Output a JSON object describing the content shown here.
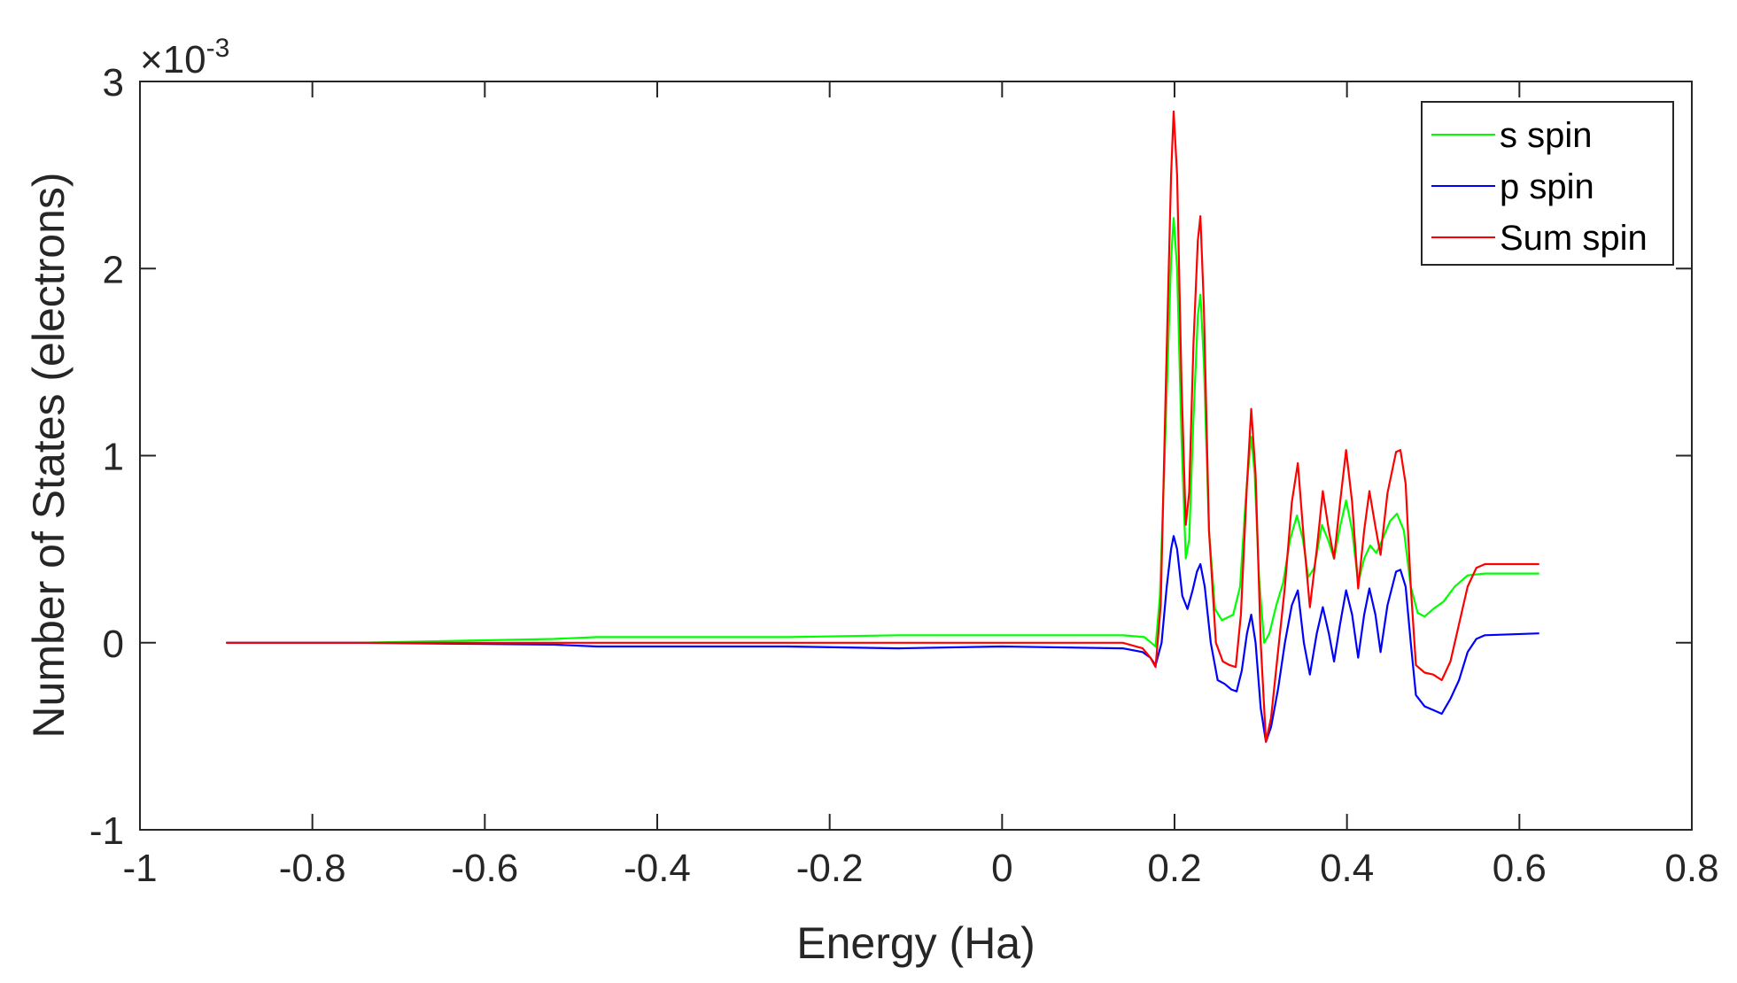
{
  "chart_data": {
    "type": "line",
    "title": "",
    "xlabel": "Energy (Ha)",
    "ylabel": "Number of States (electrons)",
    "y_multiplier": {
      "base": "×10",
      "exponent": "-3"
    },
    "xlim": [
      -1,
      0.8
    ],
    "ylim": [
      -1,
      3
    ],
    "x_ticks": [
      -1,
      -0.8,
      -0.6,
      -0.4,
      -0.2,
      0,
      0.2,
      0.4,
      0.6,
      0.8
    ],
    "x_tick_labels": [
      "-1",
      "-0.8",
      "-0.6",
      "-0.4",
      "-0.2",
      "0",
      "0.2",
      "0.4",
      "0.6",
      "0.8"
    ],
    "y_ticks": [
      -1,
      0,
      1,
      2,
      3
    ],
    "y_tick_labels": [
      "-1",
      "0",
      "1",
      "2",
      "3"
    ],
    "grid": false,
    "legend_position": "top-right",
    "series": [
      {
        "name": "s spin",
        "color": "#00ff00",
        "points": [
          [
            -0.9,
            0.0
          ],
          [
            -0.75,
            0.0
          ],
          [
            -0.52,
            0.02
          ],
          [
            -0.47,
            0.03
          ],
          [
            -0.3,
            0.03
          ],
          [
            -0.25,
            0.03
          ],
          [
            -0.12,
            0.04
          ],
          [
            0.0,
            0.04
          ],
          [
            0.14,
            0.04
          ],
          [
            0.165,
            0.03
          ],
          [
            0.173,
            0.0
          ],
          [
            0.178,
            -0.02
          ],
          [
            0.183,
            0.25
          ],
          [
            0.19,
            1.2
          ],
          [
            0.196,
            2.05
          ],
          [
            0.199,
            2.27
          ],
          [
            0.203,
            2.0
          ],
          [
            0.208,
            1.1
          ],
          [
            0.213,
            0.45
          ],
          [
            0.217,
            0.55
          ],
          [
            0.222,
            1.2
          ],
          [
            0.227,
            1.75
          ],
          [
            0.23,
            1.86
          ],
          [
            0.234,
            1.5
          ],
          [
            0.24,
            0.6
          ],
          [
            0.247,
            0.18
          ],
          [
            0.255,
            0.12
          ],
          [
            0.268,
            0.15
          ],
          [
            0.276,
            0.3
          ],
          [
            0.283,
            0.8
          ],
          [
            0.289,
            1.1
          ],
          [
            0.293,
            0.9
          ],
          [
            0.298,
            0.35
          ],
          [
            0.304,
            0.0
          ],
          [
            0.31,
            0.05
          ],
          [
            0.318,
            0.2
          ],
          [
            0.326,
            0.32
          ],
          [
            0.334,
            0.55
          ],
          [
            0.342,
            0.68
          ],
          [
            0.349,
            0.55
          ],
          [
            0.355,
            0.35
          ],
          [
            0.362,
            0.4
          ],
          [
            0.371,
            0.63
          ],
          [
            0.378,
            0.55
          ],
          [
            0.385,
            0.45
          ],
          [
            0.392,
            0.62
          ],
          [
            0.399,
            0.76
          ],
          [
            0.406,
            0.6
          ],
          [
            0.413,
            0.32
          ],
          [
            0.42,
            0.45
          ],
          [
            0.427,
            0.52
          ],
          [
            0.434,
            0.48
          ],
          [
            0.441,
            0.55
          ],
          [
            0.45,
            0.65
          ],
          [
            0.458,
            0.69
          ],
          [
            0.466,
            0.6
          ],
          [
            0.474,
            0.3
          ],
          [
            0.482,
            0.16
          ],
          [
            0.49,
            0.14
          ],
          [
            0.5,
            0.18
          ],
          [
            0.512,
            0.22
          ],
          [
            0.525,
            0.3
          ],
          [
            0.54,
            0.36
          ],
          [
            0.56,
            0.37
          ],
          [
            0.623,
            0.37
          ]
        ]
      },
      {
        "name": "p spin",
        "color": "#0000ff",
        "points": [
          [
            -0.9,
            0.0
          ],
          [
            -0.75,
            0.0
          ],
          [
            -0.52,
            -0.01
          ],
          [
            -0.47,
            -0.02
          ],
          [
            -0.3,
            -0.02
          ],
          [
            -0.25,
            -0.02
          ],
          [
            -0.12,
            -0.03
          ],
          [
            0.0,
            -0.02
          ],
          [
            0.14,
            -0.03
          ],
          [
            0.163,
            -0.05
          ],
          [
            0.172,
            -0.08
          ],
          [
            0.178,
            -0.12
          ],
          [
            0.185,
            0.0
          ],
          [
            0.191,
            0.3
          ],
          [
            0.196,
            0.5
          ],
          [
            0.199,
            0.57
          ],
          [
            0.203,
            0.5
          ],
          [
            0.209,
            0.25
          ],
          [
            0.215,
            0.18
          ],
          [
            0.221,
            0.28
          ],
          [
            0.226,
            0.38
          ],
          [
            0.23,
            0.42
          ],
          [
            0.235,
            0.3
          ],
          [
            0.242,
            0.0
          ],
          [
            0.25,
            -0.2
          ],
          [
            0.258,
            -0.22
          ],
          [
            0.266,
            -0.25
          ],
          [
            0.272,
            -0.26
          ],
          [
            0.278,
            -0.15
          ],
          [
            0.284,
            0.05
          ],
          [
            0.289,
            0.15
          ],
          [
            0.294,
            0.0
          ],
          [
            0.3,
            -0.35
          ],
          [
            0.306,
            -0.53
          ],
          [
            0.312,
            -0.45
          ],
          [
            0.32,
            -0.25
          ],
          [
            0.328,
            0.0
          ],
          [
            0.336,
            0.2
          ],
          [
            0.343,
            0.28
          ],
          [
            0.35,
            0.0
          ],
          [
            0.357,
            -0.17
          ],
          [
            0.365,
            0.05
          ],
          [
            0.372,
            0.19
          ],
          [
            0.379,
            0.05
          ],
          [
            0.385,
            -0.1
          ],
          [
            0.392,
            0.1
          ],
          [
            0.399,
            0.28
          ],
          [
            0.406,
            0.15
          ],
          [
            0.413,
            -0.08
          ],
          [
            0.42,
            0.15
          ],
          [
            0.426,
            0.29
          ],
          [
            0.433,
            0.15
          ],
          [
            0.439,
            -0.05
          ],
          [
            0.447,
            0.2
          ],
          [
            0.457,
            0.38
          ],
          [
            0.462,
            0.39
          ],
          [
            0.468,
            0.3
          ],
          [
            0.474,
            0.0
          ],
          [
            0.48,
            -0.28
          ],
          [
            0.49,
            -0.34
          ],
          [
            0.5,
            -0.36
          ],
          [
            0.51,
            -0.38
          ],
          [
            0.52,
            -0.3
          ],
          [
            0.53,
            -0.2
          ],
          [
            0.54,
            -0.05
          ],
          [
            0.55,
            0.02
          ],
          [
            0.56,
            0.04
          ],
          [
            0.623,
            0.05
          ]
        ]
      },
      {
        "name": "Sum spin",
        "color": "#ff0000",
        "points": [
          [
            -0.9,
            0.0
          ],
          [
            -0.75,
            0.0
          ],
          [
            -0.52,
            0.0
          ],
          [
            -0.47,
            0.0
          ],
          [
            -0.3,
            0.0
          ],
          [
            -0.25,
            0.0
          ],
          [
            -0.12,
            0.0
          ],
          [
            0.0,
            0.0
          ],
          [
            0.14,
            0.0
          ],
          [
            0.163,
            -0.03
          ],
          [
            0.172,
            -0.08
          ],
          [
            0.178,
            -0.13
          ],
          [
            0.184,
            0.2
          ],
          [
            0.19,
            1.4
          ],
          [
            0.196,
            2.5
          ],
          [
            0.199,
            2.84
          ],
          [
            0.203,
            2.5
          ],
          [
            0.208,
            1.4
          ],
          [
            0.213,
            0.63
          ],
          [
            0.217,
            0.8
          ],
          [
            0.222,
            1.6
          ],
          [
            0.227,
            2.15
          ],
          [
            0.23,
            2.28
          ],
          [
            0.234,
            1.8
          ],
          [
            0.24,
            0.6
          ],
          [
            0.248,
            0.0
          ],
          [
            0.256,
            -0.1
          ],
          [
            0.264,
            -0.12
          ],
          [
            0.271,
            -0.13
          ],
          [
            0.277,
            0.15
          ],
          [
            0.284,
            0.85
          ],
          [
            0.289,
            1.25
          ],
          [
            0.294,
            0.9
          ],
          [
            0.3,
            0.0
          ],
          [
            0.306,
            -0.53
          ],
          [
            0.312,
            -0.4
          ],
          [
            0.32,
            -0.05
          ],
          [
            0.328,
            0.3
          ],
          [
            0.336,
            0.75
          ],
          [
            0.343,
            0.96
          ],
          [
            0.35,
            0.55
          ],
          [
            0.357,
            0.19
          ],
          [
            0.365,
            0.5
          ],
          [
            0.372,
            0.81
          ],
          [
            0.379,
            0.6
          ],
          [
            0.385,
            0.45
          ],
          [
            0.392,
            0.75
          ],
          [
            0.399,
            1.03
          ],
          [
            0.406,
            0.75
          ],
          [
            0.413,
            0.29
          ],
          [
            0.42,
            0.6
          ],
          [
            0.426,
            0.81
          ],
          [
            0.433,
            0.62
          ],
          [
            0.439,
            0.47
          ],
          [
            0.447,
            0.8
          ],
          [
            0.457,
            1.02
          ],
          [
            0.462,
            1.03
          ],
          [
            0.468,
            0.85
          ],
          [
            0.474,
            0.3
          ],
          [
            0.48,
            -0.12
          ],
          [
            0.49,
            -0.16
          ],
          [
            0.5,
            -0.17
          ],
          [
            0.51,
            -0.2
          ],
          [
            0.52,
            -0.1
          ],
          [
            0.53,
            0.1
          ],
          [
            0.54,
            0.3
          ],
          [
            0.55,
            0.4
          ],
          [
            0.56,
            0.42
          ],
          [
            0.623,
            0.42
          ]
        ]
      }
    ]
  }
}
